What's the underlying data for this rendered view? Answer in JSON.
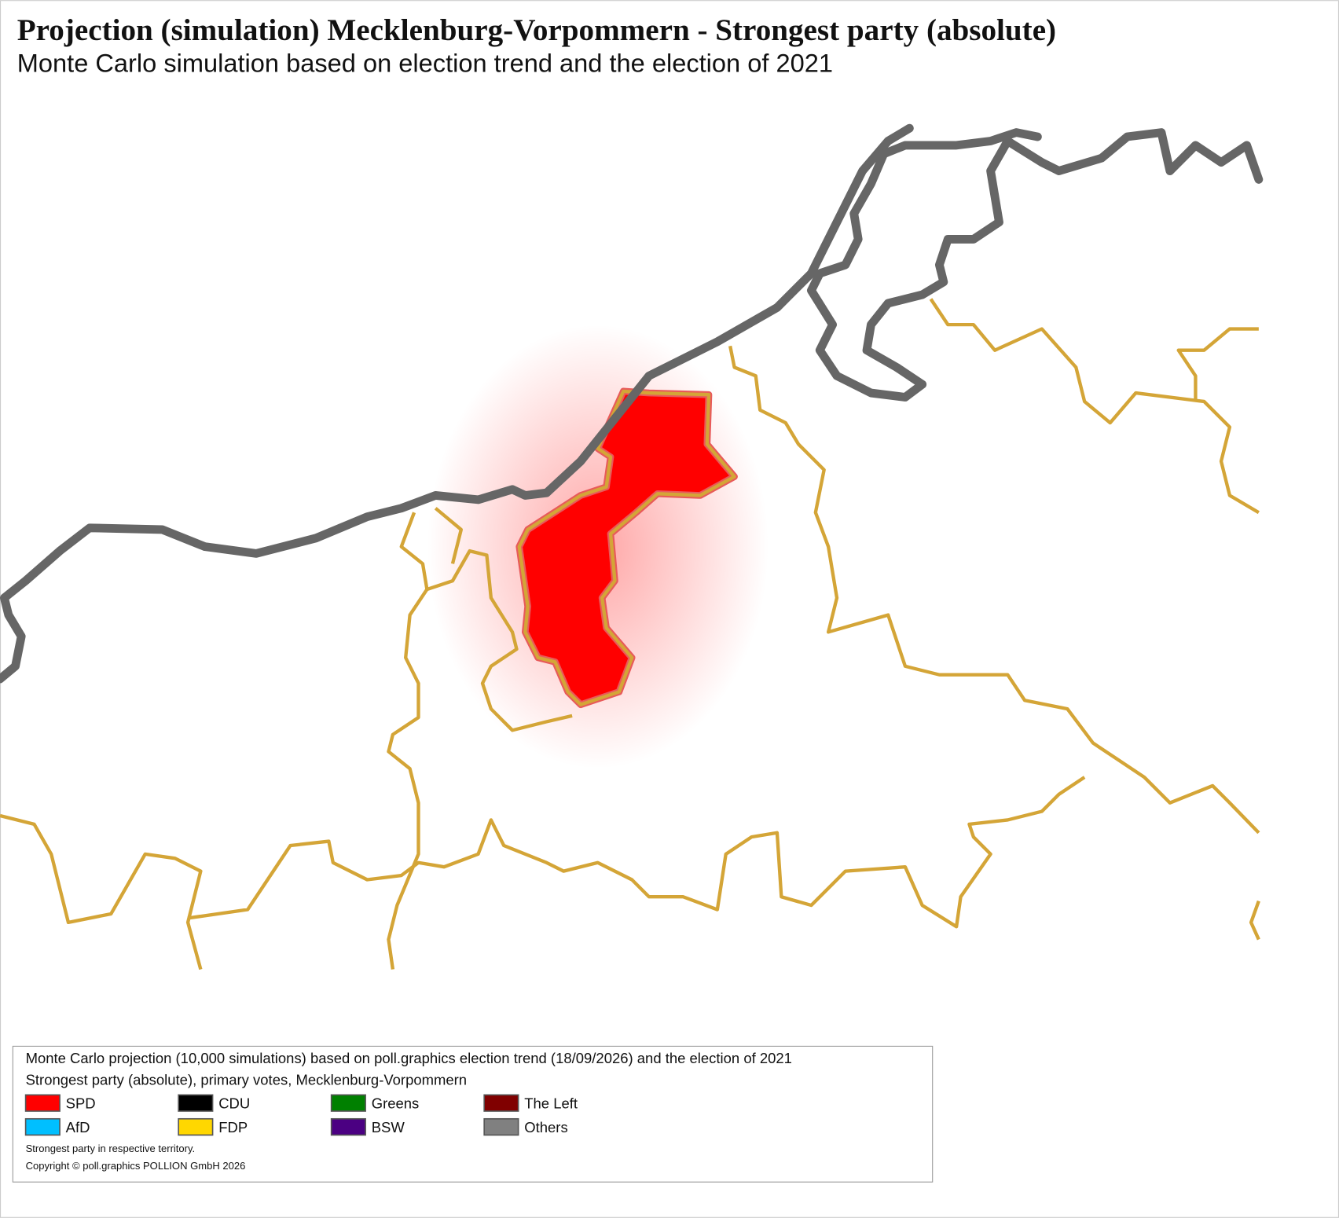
{
  "header": {
    "title": "Projection (simulation) Mecklenburg-Vorpommern - Strongest party (absolute)",
    "subtitle": "Monte Carlo simulation based on election trend and the election of 2021"
  },
  "legend": {
    "lines": [
      "Monte Carlo projection (10,000 simulations) based on poll.graphics election trend (18/09/2026) and the election of 2021",
      "Strongest party (absolute), primary votes, Mecklenburg-Vorpommern"
    ],
    "items": [
      {
        "name": "SPD",
        "color": "#ff0000"
      },
      {
        "name": "CDU",
        "color": "#000000"
      },
      {
        "name": "Greens",
        "color": "#008000"
      },
      {
        "name": "The Left",
        "color": "#800000"
      },
      {
        "name": "AfD",
        "color": "#00bfff"
      },
      {
        "name": "FDP",
        "color": "#ffd700"
      },
      {
        "name": "BSW",
        "color": "#4b0082"
      },
      {
        "name": "Others",
        "color": "#808080"
      }
    ],
    "notes": [
      "Strongest party in respective territory.",
      "Copyright © poll.graphics POLLION GmbH 2026"
    ]
  }
}
